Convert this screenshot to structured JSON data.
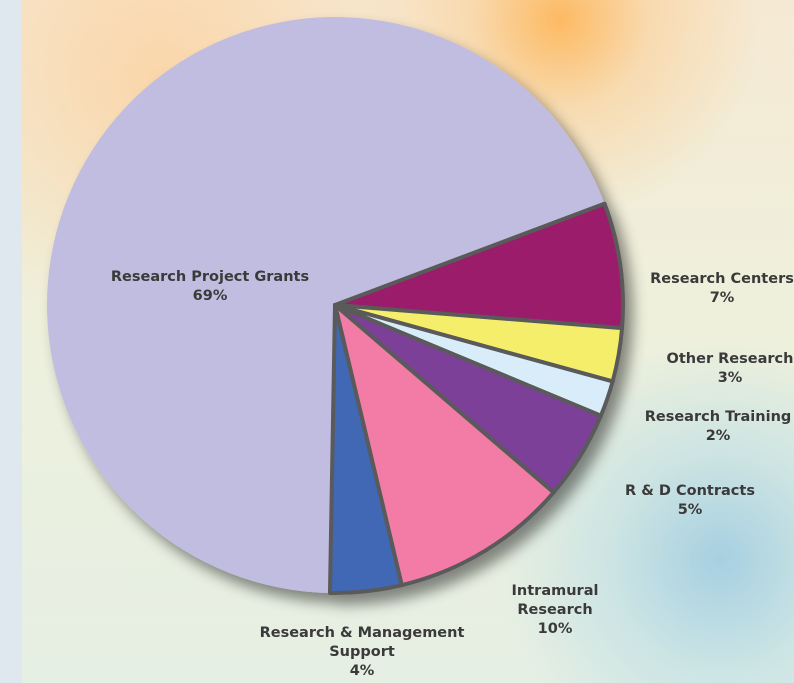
{
  "chart_data": {
    "type": "pie",
    "categories": [
      "Research Project Grants",
      "Research Centers",
      "Other Research",
      "Research Training",
      "R & D Contracts",
      "Intramural Research",
      "Research & Management Support"
    ],
    "values": [
      69,
      7,
      3,
      2,
      5,
      10,
      4
    ],
    "value_labels": [
      "69%",
      "7%",
      "3%",
      "2%",
      "5%",
      "10%",
      "4%"
    ],
    "colors": [
      "#c0bde0",
      "#9b1f6a",
      "#f5ee6a",
      "#d8edf9",
      "#7d3f98",
      "#f27ba6",
      "#3f67b5"
    ]
  }
}
